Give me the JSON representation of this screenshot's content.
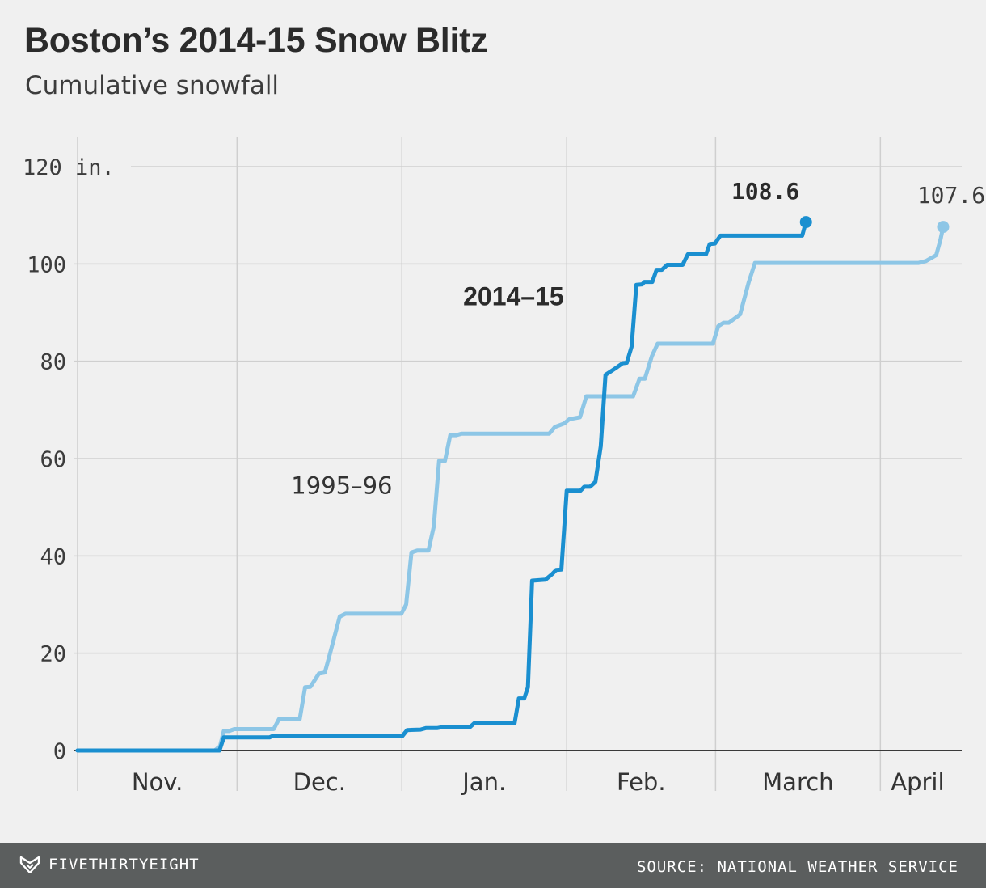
{
  "header": {
    "title": "Boston’s 2014-15 Snow Blitz",
    "subtitle": "Cumulative snowfall"
  },
  "footer": {
    "brand": "FIVETHIRTYEIGHT",
    "source": "SOURCE: NATIONAL WEATHER SERVICE"
  },
  "chart_data": {
    "type": "line",
    "title": "Boston’s 2014-15 Snow Blitz",
    "subtitle": "Cumulative snowfall",
    "xlabel": "",
    "ylabel": "in.",
    "x_unit": "days since Nov. 1",
    "xlim": [
      -0.6,
      166.3
    ],
    "ylim": [
      0,
      120
    ],
    "y_ticks": [
      0,
      20,
      40,
      60,
      80,
      100,
      120
    ],
    "y_tick_labels": [
      "0",
      "20",
      "40",
      "60",
      "80",
      "100",
      "120 in."
    ],
    "months": [
      {
        "label": "Nov.",
        "start_day": 0,
        "center_day": 15
      },
      {
        "label": "Dec.",
        "start_day": 30,
        "center_day": 45.5
      },
      {
        "label": "Jan.",
        "start_day": 61,
        "center_day": 76.5
      },
      {
        "label": "Feb.",
        "start_day": 92,
        "center_day": 106
      },
      {
        "label": "March",
        "start_day": 120,
        "center_day": 135.5
      },
      {
        "label": "April",
        "start_day": 151,
        "center_day": 158
      }
    ],
    "grid": true,
    "series": [
      {
        "name": "1995–96",
        "color": "#8dc6e6",
        "end_label": "107.6",
        "points": [
          [
            0,
            0
          ],
          [
            25.8,
            0
          ],
          [
            26.8,
            0.9
          ],
          [
            27.5,
            4
          ],
          [
            28.5,
            4
          ],
          [
            29.5,
            4.4
          ],
          [
            36.9,
            4.4
          ],
          [
            37.9,
            6.5
          ],
          [
            41.8,
            6.5
          ],
          [
            42.8,
            13
          ],
          [
            43.8,
            13.1
          ],
          [
            45.4,
            15.8
          ],
          [
            46.5,
            16
          ],
          [
            47.4,
            19.6
          ],
          [
            49.3,
            27.5
          ],
          [
            50.4,
            28.1
          ],
          [
            60.9,
            28.1
          ],
          [
            61.8,
            30
          ],
          [
            62.8,
            40.7
          ],
          [
            63.9,
            41.1
          ],
          [
            66,
            41.1
          ],
          [
            67,
            46
          ],
          [
            68,
            59.5
          ],
          [
            69.1,
            59.5
          ],
          [
            70.1,
            64.8
          ],
          [
            71.2,
            64.8
          ],
          [
            72.2,
            65.1
          ],
          [
            88.7,
            65.1
          ],
          [
            89.8,
            66.5
          ],
          [
            91.5,
            67.2
          ],
          [
            92.5,
            68.1
          ],
          [
            94.5,
            68.5
          ],
          [
            95.7,
            72.8
          ],
          [
            104.5,
            72.8
          ],
          [
            105.7,
            76.4
          ],
          [
            106.7,
            76.4
          ],
          [
            108,
            81
          ],
          [
            109.1,
            83.6
          ],
          [
            119.5,
            83.6
          ],
          [
            120.5,
            87.2
          ],
          [
            121.5,
            87.9
          ],
          [
            122.5,
            87.9
          ],
          [
            124.6,
            89.6
          ],
          [
            126.2,
            96.1
          ],
          [
            127.4,
            100.2
          ],
          [
            158.2,
            100.2
          ],
          [
            159.6,
            100.6
          ],
          [
            161.5,
            101.8
          ],
          [
            162.3,
            105
          ],
          [
            162.8,
            107.6
          ]
        ]
      },
      {
        "name": "2014–15",
        "color": "#1a8fd0",
        "end_label": "108.6",
        "points": [
          [
            0,
            0
          ],
          [
            26.7,
            0
          ],
          [
            27.5,
            2.7
          ],
          [
            36.1,
            2.7
          ],
          [
            36.7,
            3
          ],
          [
            61.1,
            3
          ],
          [
            62,
            4.2
          ],
          [
            64.5,
            4.3
          ],
          [
            65.5,
            4.6
          ],
          [
            67.6,
            4.6
          ],
          [
            68.6,
            4.8
          ],
          [
            73.8,
            4.8
          ],
          [
            74.6,
            5.6
          ],
          [
            82.2,
            5.6
          ],
          [
            83,
            10.7
          ],
          [
            84,
            10.7
          ],
          [
            84.7,
            13
          ],
          [
            85.5,
            34.9
          ],
          [
            88,
            35.1
          ],
          [
            89.3,
            36.3
          ],
          [
            90,
            37.1
          ],
          [
            91,
            37.2
          ],
          [
            92,
            53.4
          ],
          [
            94.6,
            53.4
          ],
          [
            95.3,
            54.2
          ],
          [
            96.4,
            54.2
          ],
          [
            97.4,
            55.2
          ],
          [
            98.4,
            62.5
          ],
          [
            99.3,
            77.2
          ],
          [
            101.5,
            78.8
          ],
          [
            102.5,
            79.6
          ],
          [
            103.3,
            79.7
          ],
          [
            104.2,
            83
          ],
          [
            105.1,
            95.7
          ],
          [
            106.2,
            95.8
          ],
          [
            106.6,
            96.3
          ],
          [
            108.1,
            96.3
          ],
          [
            108.9,
            98.8
          ],
          [
            109.9,
            98.8
          ],
          [
            110.9,
            99.8
          ],
          [
            113.8,
            99.8
          ],
          [
            114.8,
            102
          ],
          [
            118.2,
            102
          ],
          [
            118.9,
            104.1
          ],
          [
            119.9,
            104.2
          ],
          [
            120.9,
            105.8
          ],
          [
            136.3,
            105.8
          ],
          [
            137,
            108.6
          ]
        ]
      }
    ],
    "annotations": [
      {
        "text": "2014–15",
        "series": "2014–15"
      },
      {
        "text": "1995–96",
        "series": "1995–96"
      }
    ]
  }
}
